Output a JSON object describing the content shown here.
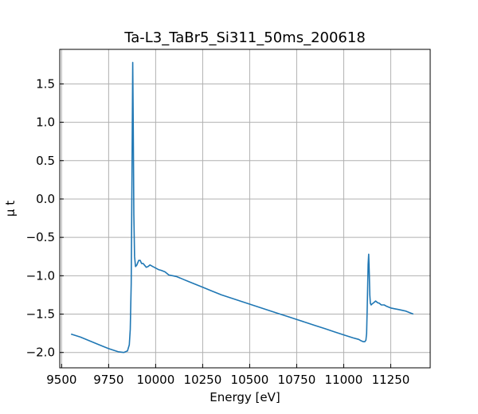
{
  "chart_data": {
    "type": "line",
    "title": "Ta-L3_TaBr5_Si311_50ms_200618",
    "xlabel": "Energy [eV]",
    "ylabel": "μ t",
    "xlim": [
      9490,
      11460
    ],
    "ylim": [
      -2.2,
      1.95
    ],
    "xticks": [
      9500,
      9750,
      10000,
      10250,
      10500,
      10750,
      11000,
      11250
    ],
    "xtick_labels": [
      "9500",
      "9750",
      "10000",
      "10250",
      "10500",
      "10750",
      "11000",
      "11250"
    ],
    "yticks": [
      -2.0,
      -1.5,
      -1.0,
      -0.5,
      0.0,
      0.5,
      1.0,
      1.5
    ],
    "ytick_labels": [
      "−2.0",
      "−1.5",
      "−1.0",
      "−0.5",
      "0.0",
      "0.5",
      "1.0",
      "1.5"
    ],
    "grid": true,
    "series": [
      {
        "color": "#1f77b4",
        "x": [
          9550,
          9600,
          9650,
          9700,
          9750,
          9800,
          9830,
          9850,
          9860,
          9865,
          9870,
          9874,
          9878,
          9881,
          9884,
          9888,
          9893,
          9900,
          9910,
          9918,
          9925,
          9933,
          9940,
          9950,
          9960,
          9970,
          9985,
          10000,
          10015,
          10030,
          10050,
          10070,
          10090,
          10110,
          10130,
          10150,
          10170,
          10200,
          10250,
          10300,
          10350,
          10400,
          10450,
          10500,
          10550,
          10600,
          10650,
          10700,
          10750,
          10800,
          10850,
          10900,
          10950,
          11000,
          11050,
          11080,
          11095,
          11105,
          11112,
          11118,
          11122,
          11126,
          11130,
          11133,
          11136,
          11139,
          11142,
          11146,
          11150,
          11160,
          11170,
          11180,
          11190,
          11200,
          11215,
          11230,
          11250,
          11270,
          11290,
          11310,
          11330,
          11350,
          11370
        ],
        "y": [
          -1.76,
          -1.8,
          -1.85,
          -1.9,
          -1.95,
          -1.99,
          -2.0,
          -1.98,
          -1.9,
          -1.7,
          -1.1,
          0.2,
          1.78,
          0.9,
          -0.2,
          -0.75,
          -0.88,
          -0.86,
          -0.8,
          -0.8,
          -0.84,
          -0.84,
          -0.86,
          -0.89,
          -0.88,
          -0.86,
          -0.88,
          -0.9,
          -0.92,
          -0.93,
          -0.95,
          -0.99,
          -1.0,
          -1.01,
          -1.03,
          -1.05,
          -1.07,
          -1.1,
          -1.15,
          -1.2,
          -1.25,
          -1.29,
          -1.33,
          -1.37,
          -1.41,
          -1.45,
          -1.49,
          -1.53,
          -1.57,
          -1.61,
          -1.65,
          -1.69,
          -1.73,
          -1.77,
          -1.81,
          -1.83,
          -1.85,
          -1.86,
          -1.86,
          -1.84,
          -1.75,
          -1.3,
          -0.85,
          -0.72,
          -0.95,
          -1.25,
          -1.36,
          -1.38,
          -1.37,
          -1.35,
          -1.33,
          -1.35,
          -1.36,
          -1.38,
          -1.38,
          -1.4,
          -1.42,
          -1.43,
          -1.44,
          -1.45,
          -1.46,
          -1.48,
          -1.5
        ]
      }
    ]
  }
}
